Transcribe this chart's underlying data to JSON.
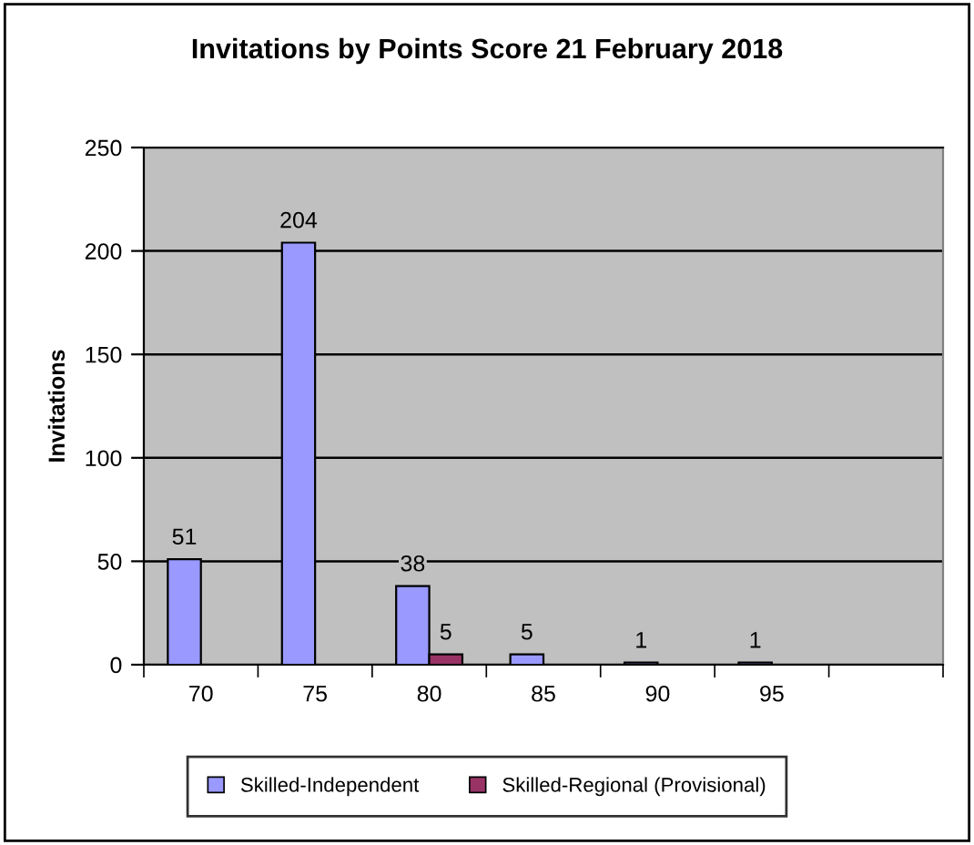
{
  "chart_data": {
    "type": "bar",
    "title": "Invitations by Points Score 21 February 2018",
    "ylabel": "Invitations",
    "categories": [
      "70",
      "75",
      "80",
      "85",
      "90",
      "95",
      null
    ],
    "series": [
      {
        "name": "Skilled-Independent",
        "color": "#9999ff",
        "values": [
          51,
          204,
          38,
          5,
          1,
          1,
          null
        ],
        "value_labels": [
          "51",
          "204",
          "38",
          "5",
          "1",
          "1",
          null
        ]
      },
      {
        "name": "Skilled-Regional (Provisional)",
        "color": "#993366",
        "values": [
          null,
          null,
          5,
          null,
          null,
          null,
          null
        ],
        "value_labels": [
          null,
          null,
          "5",
          null,
          null,
          null,
          null
        ]
      }
    ],
    "ylim": [
      0,
      250
    ],
    "yticks": [
      0,
      50,
      100,
      150,
      200,
      250
    ],
    "grid": "y",
    "legend": "bottom"
  }
}
